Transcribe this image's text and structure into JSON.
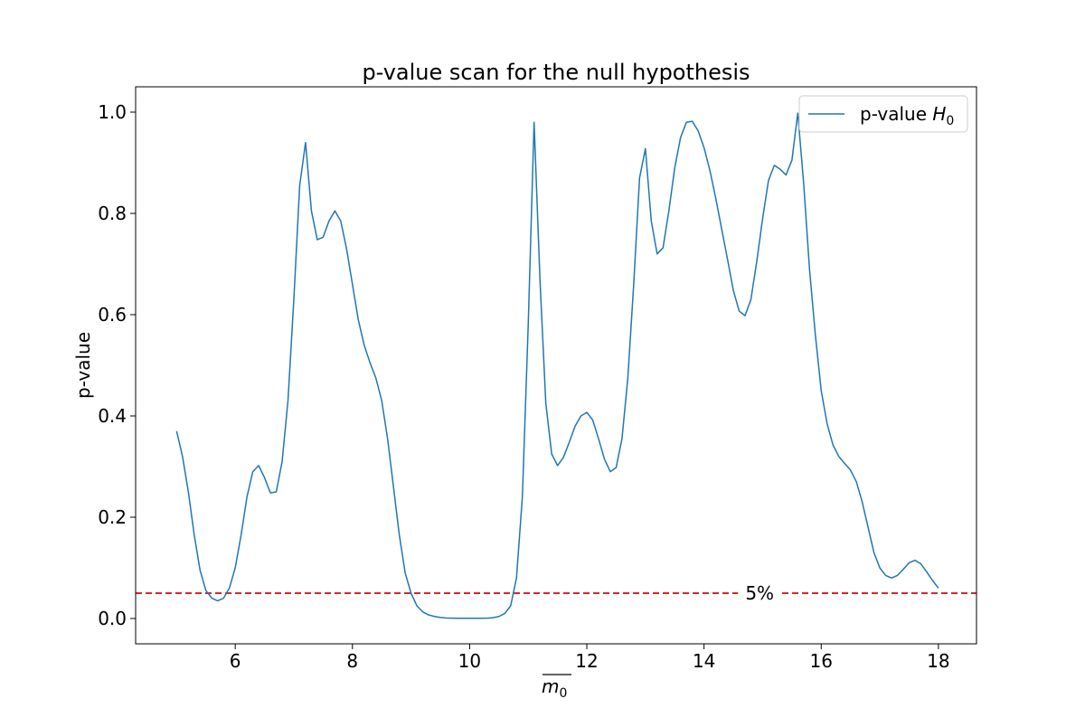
{
  "chart_data": {
    "type": "line",
    "title": "p-value scan for the null hypothesis",
    "xlabel": "m",
    "xlabel_sub": "0",
    "ylabel": "p-value",
    "xlim": [
      4.3,
      18.65
    ],
    "ylim": [
      -0.05,
      1.05
    ],
    "xticks": [
      6,
      8,
      10,
      12,
      14,
      16,
      18
    ],
    "yticks": [
      0.0,
      0.2,
      0.4,
      0.6,
      0.8,
      1.0
    ],
    "xtick_labels": [
      "6",
      "8",
      "10",
      "12",
      "14",
      "16",
      "18"
    ],
    "ytick_labels": [
      "0.0",
      "0.2",
      "0.4",
      "0.6",
      "0.8",
      "1.0"
    ],
    "grid": false,
    "legend_position": "top-right",
    "series": [
      {
        "name": "p-value H",
        "name_sub": "0",
        "color": "#1f77b4",
        "x": [
          5.0,
          5.1,
          5.2,
          5.3,
          5.4,
          5.5,
          5.6,
          5.7,
          5.8,
          5.9,
          6.0,
          6.1,
          6.2,
          6.3,
          6.4,
          6.5,
          6.6,
          6.7,
          6.8,
          6.9,
          7.0,
          7.1,
          7.2,
          7.3,
          7.4,
          7.5,
          7.6,
          7.7,
          7.8,
          7.9,
          8.0,
          8.1,
          8.2,
          8.3,
          8.4,
          8.5,
          8.6,
          8.7,
          8.8,
          8.9,
          9.0,
          9.1,
          9.2,
          9.3,
          9.4,
          9.5,
          9.6,
          9.7,
          9.8,
          9.9,
          10.0,
          10.1,
          10.2,
          10.3,
          10.4,
          10.5,
          10.6,
          10.7,
          10.8,
          10.9,
          11.0,
          11.1,
          11.2,
          11.3,
          11.4,
          11.5,
          11.6,
          11.7,
          11.8,
          11.9,
          12.0,
          12.1,
          12.2,
          12.3,
          12.4,
          12.5,
          12.6,
          12.7,
          12.8,
          12.9,
          13.0,
          13.1,
          13.2,
          13.3,
          13.4,
          13.5,
          13.6,
          13.7,
          13.8,
          13.9,
          14.0,
          14.1,
          14.2,
          14.3,
          14.4,
          14.5,
          14.6,
          14.7,
          14.8,
          14.9,
          15.0,
          15.1,
          15.2,
          15.3,
          15.4,
          15.5,
          15.6,
          15.7,
          15.8,
          15.9,
          16.0,
          16.1,
          16.2,
          16.3,
          16.4,
          16.5,
          16.6,
          16.7,
          16.8,
          16.9,
          17.0,
          17.1,
          17.2,
          17.3,
          17.4,
          17.5,
          17.6,
          17.7,
          17.8,
          17.9,
          18.0
        ],
        "y": [
          0.37,
          0.32,
          0.25,
          0.165,
          0.095,
          0.055,
          0.04,
          0.035,
          0.04,
          0.06,
          0.1,
          0.165,
          0.24,
          0.29,
          0.302,
          0.278,
          0.248,
          0.25,
          0.31,
          0.43,
          0.63,
          0.855,
          0.94,
          0.805,
          0.748,
          0.753,
          0.785,
          0.805,
          0.785,
          0.73,
          0.66,
          0.59,
          0.54,
          0.505,
          0.475,
          0.43,
          0.355,
          0.26,
          0.165,
          0.09,
          0.05,
          0.025,
          0.013,
          0.007,
          0.004,
          0.002,
          0.001,
          0.0007,
          0.0005,
          0.0005,
          0.0005,
          0.0005,
          0.0005,
          0.0007,
          0.0015,
          0.004,
          0.01,
          0.025,
          0.08,
          0.24,
          0.58,
          0.98,
          0.67,
          0.425,
          0.325,
          0.302,
          0.318,
          0.348,
          0.38,
          0.4,
          0.407,
          0.392,
          0.355,
          0.315,
          0.29,
          0.298,
          0.355,
          0.475,
          0.66,
          0.87,
          0.928,
          0.785,
          0.72,
          0.732,
          0.805,
          0.89,
          0.95,
          0.98,
          0.982,
          0.963,
          0.93,
          0.885,
          0.83,
          0.77,
          0.71,
          0.648,
          0.607,
          0.598,
          0.63,
          0.705,
          0.79,
          0.865,
          0.895,
          0.887,
          0.876,
          0.905,
          0.998,
          0.86,
          0.69,
          0.56,
          0.45,
          0.385,
          0.343,
          0.32,
          0.306,
          0.293,
          0.27,
          0.23,
          0.18,
          0.13,
          0.1,
          0.085,
          0.08,
          0.085,
          0.097,
          0.11,
          0.115,
          0.108,
          0.092,
          0.075,
          0.06
        ]
      }
    ],
    "threshold": {
      "y": 0.05,
      "label": "5%",
      "label_x": 14.95,
      "color": "#d62728"
    }
  }
}
